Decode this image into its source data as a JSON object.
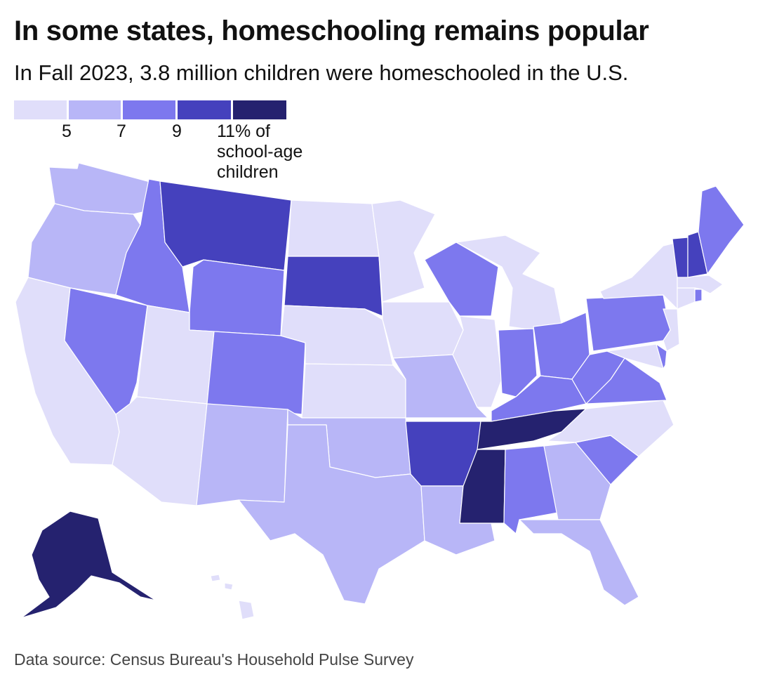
{
  "title": "In some states, homeschooling remains popular",
  "subtitle": "In Fall 2023, 3.8 million children were homeschooled in the U.S.",
  "legend": {
    "colors": [
      "#e0defa",
      "#b8b6f7",
      "#7d78ee",
      "#4541bd",
      "#25226f"
    ],
    "ticks": [
      "5",
      "7",
      "9",
      "11% of school-age children"
    ]
  },
  "source": "Data source: Census Bureau's Household Pulse Survey",
  "map_data": {
    "type": "choropleth",
    "classes": [
      {
        "range": "<5",
        "color": "#e0defa"
      },
      {
        "range": "5-7",
        "color": "#b8b6f7"
      },
      {
        "range": "7-9",
        "color": "#7d78ee"
      },
      {
        "range": "9-11",
        "color": "#4541bd"
      },
      {
        "range": ">=11",
        "color": "#25226f"
      }
    ],
    "states": {
      "WA": 1,
      "OR": 1,
      "CA": 0,
      "NV": 2,
      "ID": 2,
      "MT": 3,
      "WY": 2,
      "UT": 0,
      "AZ": 0,
      "CO": 2,
      "NM": 1,
      "ND": 0,
      "SD": 3,
      "NE": 0,
      "KS": 0,
      "OK": 1,
      "TX": 1,
      "MN": 0,
      "IA": 0,
      "MO": 1,
      "AR": 3,
      "LA": 1,
      "WI": 2,
      "IL": 0,
      "MI": 0,
      "IN": 2,
      "OH": 2,
      "KY": 2,
      "TN": 4,
      "MS": 4,
      "AL": 2,
      "GA": 1,
      "FL": 1,
      "SC": 2,
      "NC": 0,
      "VA": 2,
      "WV": 2,
      "PA": 2,
      "NY": 0,
      "VT": 3,
      "NH": 3,
      "ME": 2,
      "MA": 0,
      "RI": 2,
      "CT": 0,
      "NJ": 0,
      "DE": 2,
      "MD": 0,
      "AK": 4,
      "HI": 0
    }
  }
}
